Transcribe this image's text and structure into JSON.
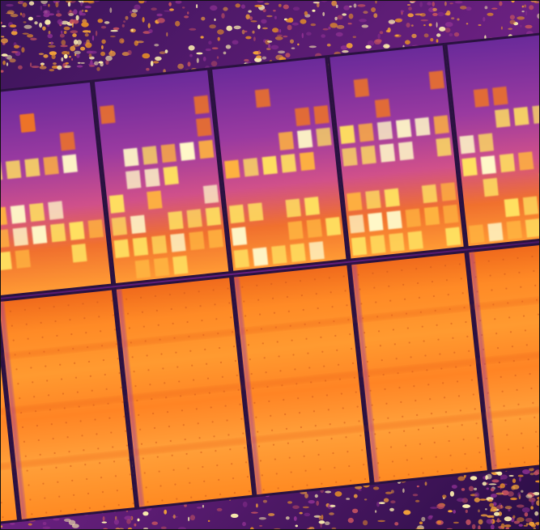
{
  "image": {
    "subject": "thermal-aerial-solar-array",
    "palette": {
      "background": "#1a0a2e",
      "ground_dark": "#3a1458",
      "ground_mid": "#8a2f8f",
      "ground_hot": "#f2a13a",
      "ground_white": "#fff3b0",
      "frame": "#2a1240",
      "panel_cool_top": "#7a2e9e",
      "panel_cool_mid": "#b0409a",
      "panel_warm": "#f07428",
      "panel_hot": "#ffb340",
      "cell_hot": "#ffe060",
      "cell_white": "#fff8c8",
      "lower_panel_base": "#ff8a24",
      "lower_panel_light": "#ffa23a",
      "lower_panel_dark": "#f06a1c"
    },
    "upper_row_hotspot_pattern": [
      [
        0,
        1,
        1,
        0,
        1,
        1,
        0,
        1,
        0,
        0,
        1,
        1,
        0,
        1,
        1,
        0,
        0,
        1
      ],
      [
        1,
        0,
        1,
        1,
        0,
        1,
        1,
        0,
        1,
        1,
        0,
        1,
        1,
        0,
        1,
        1,
        0,
        1
      ],
      [
        1,
        1,
        0,
        1,
        1,
        1,
        0,
        1,
        1,
        0,
        1,
        1,
        1,
        0,
        1,
        1,
        1,
        0
      ],
      [
        0,
        1,
        1,
        1,
        1,
        0,
        1,
        1,
        1,
        1,
        1,
        0,
        1,
        1,
        0,
        1,
        1,
        1
      ]
    ]
  }
}
